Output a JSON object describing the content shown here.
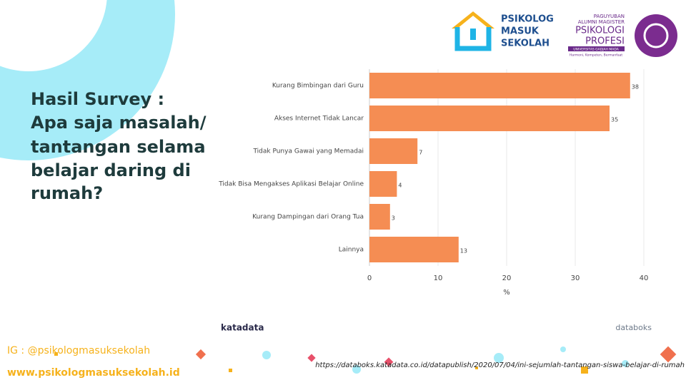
{
  "chart_data": {
    "type": "bar",
    "orientation": "horizontal",
    "categories": [
      "Kurang Bimbingan dari Guru",
      "Akses Internet Tidak Lancar",
      "Tidak Punya Gawai yang Memadai",
      "Tidak Bisa Mengakses Aplikasi Belajar Online",
      "Kurang Dampingan dari Orang Tua",
      "Lainnya"
    ],
    "values": [
      38,
      35,
      7,
      4,
      3,
      13
    ],
    "color": "#f58d53",
    "xlim": [
      0,
      41
    ],
    "xticks": [
      0,
      10,
      20,
      30,
      40
    ],
    "xlabel": "%",
    "grid": true
  },
  "slide": {
    "title": [
      "Hasil Survey :",
      "Apa saja masalah/",
      "tantangan selama",
      "belajar daring di",
      "rumah?"
    ],
    "logo1": [
      "PSIKOLOG",
      "MASUK",
      "SEKOLAH"
    ],
    "logo2": [
      "PAGUYUBAN",
      "ALUMNI MAGISTER",
      "PSIKOLOGI",
      "PROFESI",
      "UNIVERSITAS GADJAH MADA",
      "Harmoni, Kompeten, Bermanfaat"
    ],
    "katadata": "katadata",
    "databoks": "databoks",
    "instagram": "IG : @psikologmasuksekolah",
    "website": "www.psikologmasuksekolah.id",
    "source": "https://databoks.katadata.co.id/datapublish/2020/07/04/ini-sejumlah-tantangan-siswa-belajar-di-rumah"
  }
}
